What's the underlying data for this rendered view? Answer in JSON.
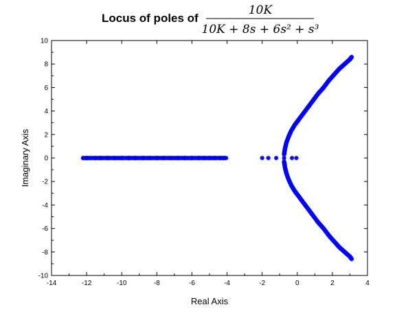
{
  "chart_data": {
    "type": "scatter",
    "title_text": "Locus of poles of",
    "title_math": {
      "numerator": "10K",
      "denominator": "10K + 8s + 6s² + s³"
    },
    "xlabel": "Real Axis",
    "ylabel": "Imaginary Axis",
    "xlim": [
      -14,
      4
    ],
    "ylim": [
      -10,
      10
    ],
    "x_ticks": [
      -14,
      -12,
      -10,
      -8,
      -6,
      -4,
      -2,
      0,
      2,
      4
    ],
    "y_ticks": [
      -10,
      -8,
      -6,
      -4,
      -2,
      0,
      2,
      4,
      6,
      8,
      10
    ],
    "x_tick_labels": [
      "-14",
      "-12",
      "-10",
      "-8",
      "-6",
      "-4",
      "-2",
      "0",
      "2",
      "4"
    ],
    "y_tick_labels": [
      "-10",
      "-8",
      "-6",
      "-4",
      "-2",
      "0",
      "2",
      "4",
      "6",
      "8",
      "10"
    ],
    "grid": false,
    "marker_color": "#0000ff",
    "marker": "asterisk",
    "series": [
      {
        "description": "real pole branch",
        "x": [
          -12.2,
          -12.0,
          -11.8,
          -11.5,
          -11.2,
          -10.8,
          -10.4,
          -10.0,
          -9.6,
          -9.2,
          -8.8,
          -8.4,
          -8.0,
          -7.6,
          -7.2,
          -6.8,
          -6.4,
          -6.0,
          -5.6,
          -5.3,
          -5.0,
          -4.7,
          -4.4,
          -4.2,
          -4.05,
          -2.0,
          -1.65,
          -1.2,
          -0.75,
          -0.3,
          -0.05
        ],
        "y": [
          0,
          0,
          0,
          0,
          0,
          0,
          0,
          0,
          0,
          0,
          0,
          0,
          0,
          0,
          0,
          0,
          0,
          0,
          0,
          0,
          0,
          0,
          0,
          0,
          0,
          0,
          0,
          0,
          0,
          0,
          0
        ]
      },
      {
        "description": "upper complex branch",
        "x": [
          -0.75,
          -0.7,
          -0.62,
          -0.5,
          -0.35,
          -0.15,
          0.05,
          0.3,
          0.6,
          0.9,
          1.2,
          1.5,
          1.8,
          2.1,
          2.4,
          2.7,
          3.0,
          3.1
        ],
        "y": [
          0.3,
          0.8,
          1.3,
          1.8,
          2.3,
          2.8,
          3.2,
          3.7,
          4.3,
          4.9,
          5.5,
          6.0,
          6.6,
          7.1,
          7.6,
          8.0,
          8.4,
          8.6
        ]
      },
      {
        "description": "lower complex branch",
        "x": [
          -0.75,
          -0.7,
          -0.62,
          -0.5,
          -0.35,
          -0.15,
          0.05,
          0.3,
          0.6,
          0.9,
          1.2,
          1.5,
          1.8,
          2.1,
          2.4,
          2.7,
          3.0,
          3.1
        ],
        "y": [
          -0.3,
          -0.8,
          -1.3,
          -1.8,
          -2.3,
          -2.8,
          -3.2,
          -3.7,
          -4.3,
          -4.9,
          -5.5,
          -6.0,
          -6.6,
          -7.1,
          -7.6,
          -8.0,
          -8.4,
          -8.6
        ]
      }
    ]
  }
}
